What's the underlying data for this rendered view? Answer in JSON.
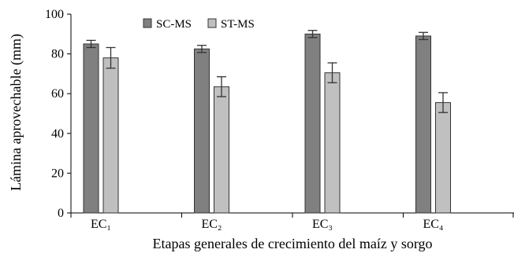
{
  "chart_data": {
    "type": "bar",
    "categories": [
      "EC₁",
      "EC₂",
      "EC₃",
      "EC₄"
    ],
    "series": [
      {
        "name": "SC-MS",
        "values": [
          85,
          82.5,
          90,
          89
        ],
        "errors": [
          1.8,
          1.8,
          1.8,
          1.8
        ],
        "color": "#808080"
      },
      {
        "name": "ST-MS",
        "values": [
          78,
          63.5,
          70.5,
          55.5
        ],
        "errors": [
          5.2,
          5,
          5,
          5
        ],
        "color": "#c0c0c0"
      }
    ],
    "xlabel": "Etapas generales de crecimiento del maíz y sorgo",
    "ylabel": "Lámina aprovechable (mm)",
    "ylim": [
      0,
      100
    ],
    "yticks": [
      0,
      20,
      40,
      60,
      80,
      100
    ],
    "grid": false,
    "legend_position": "top-left"
  }
}
